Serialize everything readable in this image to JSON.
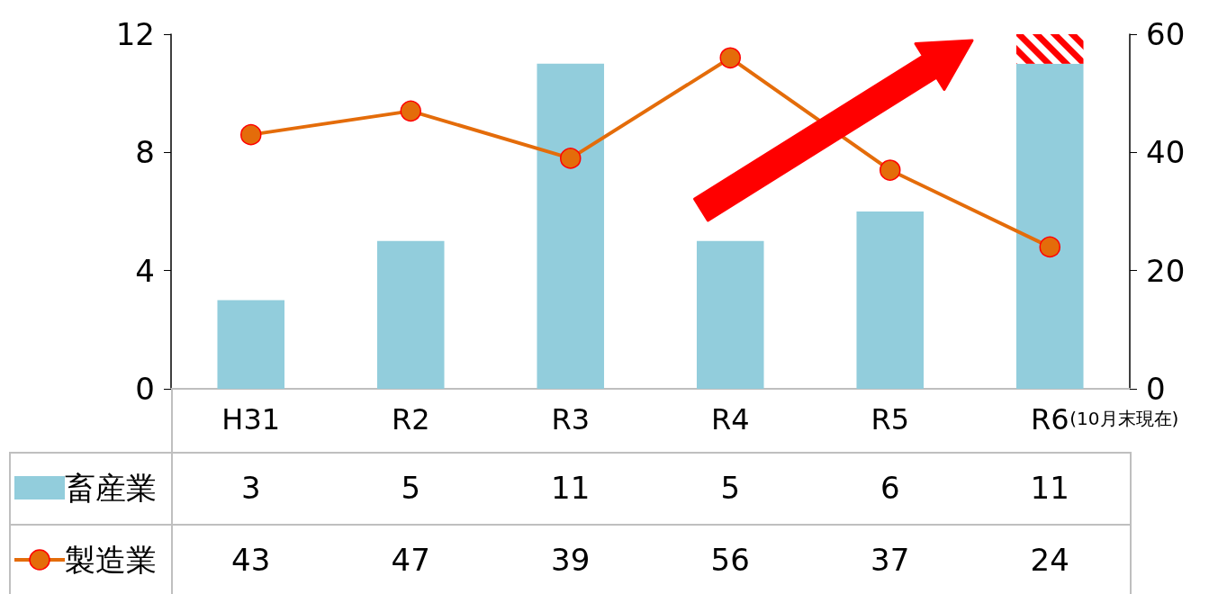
{
  "chart_data": {
    "type": "bar",
    "categories": [
      "H31",
      "R2",
      "R3",
      "R4",
      "R5",
      "R6"
    ],
    "series": [
      {
        "name": "畜産業",
        "color": "#92cddc",
        "values": [
          3,
          5,
          11,
          5,
          6,
          11
        ]
      },
      {
        "name": "製造業",
        "type": "line",
        "axis": "y2",
        "color": "#e46c0a",
        "values": [
          43,
          47,
          39,
          56,
          37,
          24
        ]
      }
    ],
    "ylim": [
      0,
      12
    ],
    "yticks": [
      0,
      4,
      8,
      12
    ],
    "y2lim": [
      0,
      60
    ],
    "y2ticks": [
      0,
      20,
      40,
      60
    ],
    "annotations": [
      "(10月末現在)"
    ],
    "data_labels": true,
    "legend": "bottom",
    "grid": false,
    "marker": "circle",
    "line_style": "solid"
  }
}
